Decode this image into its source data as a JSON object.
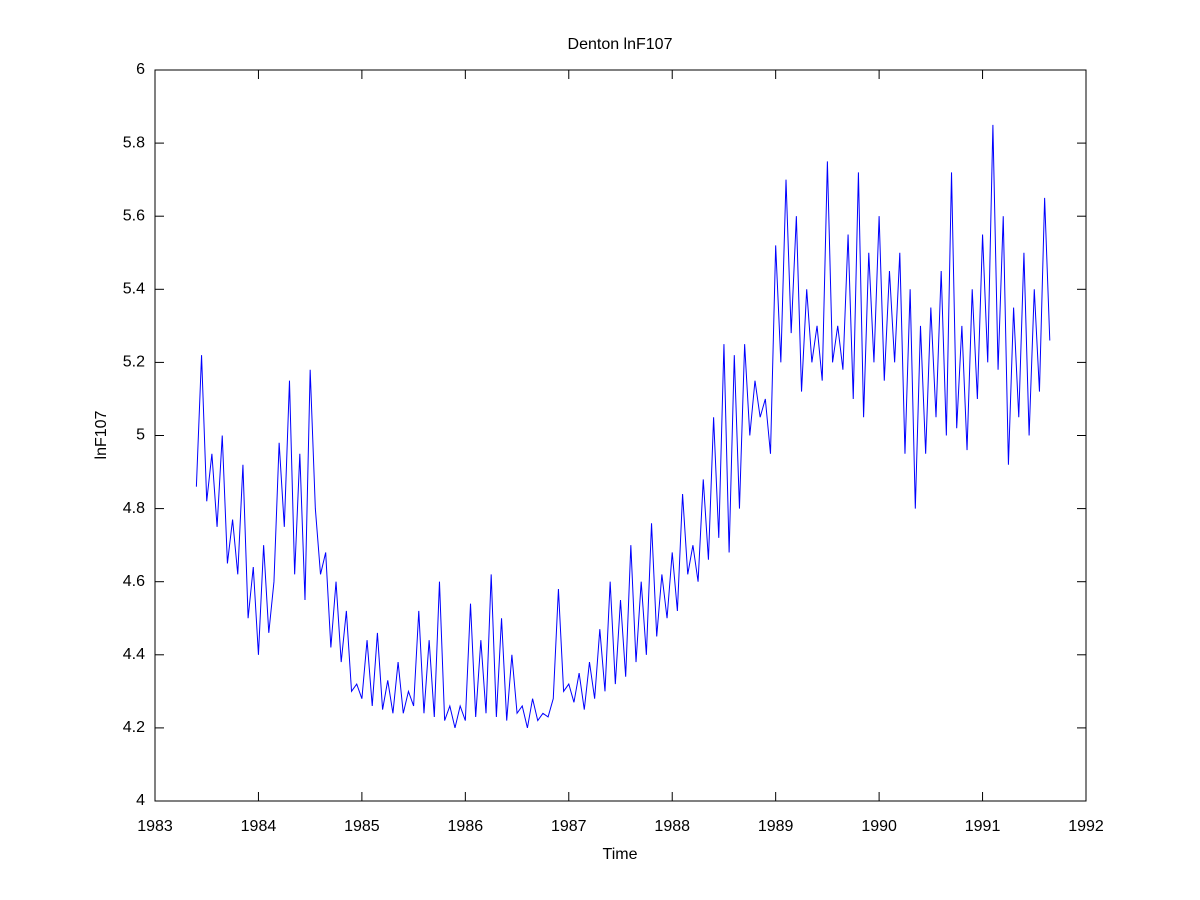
{
  "chart_data": {
    "type": "line",
    "title": "Denton lnF107",
    "x_label": "Time",
    "y_label": "lnF107",
    "xlim": [
      1983,
      1992
    ],
    "xticks": [
      1983,
      1984,
      1985,
      1986,
      1987,
      1988,
      1989,
      1990,
      1991,
      1992
    ],
    "ylim": [
      4,
      6
    ],
    "yticks": [
      4,
      4.2,
      4.4,
      4.6,
      4.8,
      5,
      5.2,
      5.4,
      5.6,
      5.8,
      6
    ],
    "grid": false,
    "x": [
      1983.4,
      1983.45,
      1983.5,
      1983.55,
      1983.6,
      1983.65,
      1983.7,
      1983.75,
      1983.8,
      1983.85,
      1983.9,
      1983.95,
      1984.0,
      1984.05,
      1984.1,
      1984.15,
      1984.2,
      1984.25,
      1984.3,
      1984.35,
      1984.4,
      1984.45,
      1984.5,
      1984.55,
      1984.6,
      1984.65,
      1984.7,
      1984.75,
      1984.8,
      1984.85,
      1984.9,
      1984.95,
      1985.0,
      1985.05,
      1985.1,
      1985.15,
      1985.2,
      1985.25,
      1985.3,
      1985.35,
      1985.4,
      1985.45,
      1985.5,
      1985.55,
      1985.6,
      1985.65,
      1985.7,
      1985.75,
      1985.8,
      1985.85,
      1985.9,
      1985.95,
      1986.0,
      1986.05,
      1986.1,
      1986.15,
      1986.2,
      1986.25,
      1986.3,
      1986.35,
      1986.4,
      1986.45,
      1986.5,
      1986.55,
      1986.6,
      1986.65,
      1986.7,
      1986.75,
      1986.8,
      1986.85,
      1986.9,
      1986.95,
      1987.0,
      1987.05,
      1987.1,
      1987.15,
      1987.2,
      1987.25,
      1987.3,
      1987.35,
      1987.4,
      1987.45,
      1987.5,
      1987.55,
      1987.6,
      1987.65,
      1987.7,
      1987.75,
      1987.8,
      1987.85,
      1987.9,
      1987.95,
      1988.0,
      1988.05,
      1988.1,
      1988.15,
      1988.2,
      1988.25,
      1988.3,
      1988.35,
      1988.4,
      1988.45,
      1988.5,
      1988.55,
      1988.6,
      1988.65,
      1988.7,
      1988.75,
      1988.8,
      1988.85,
      1988.9,
      1988.95,
      1989.0,
      1989.05,
      1989.1,
      1989.15,
      1989.2,
      1989.25,
      1989.3,
      1989.35,
      1989.4,
      1989.45,
      1989.5,
      1989.55,
      1989.6,
      1989.65,
      1989.7,
      1989.75,
      1989.8,
      1989.85,
      1989.9,
      1989.95,
      1990.0,
      1990.05,
      1990.1,
      1990.15,
      1990.2,
      1990.25,
      1990.3,
      1990.35,
      1990.4,
      1990.45,
      1990.5,
      1990.55,
      1990.6,
      1990.65,
      1990.7,
      1990.75,
      1990.8,
      1990.85,
      1990.9,
      1990.95,
      1991.0,
      1991.05,
      1991.1,
      1991.15,
      1991.2,
      1991.25,
      1991.3,
      1991.35,
      1991.4,
      1991.45,
      1991.5,
      1991.55,
      1991.6,
      1991.65
    ],
    "series": [
      {
        "color": "#0000ff",
        "values": [
          4.86,
          5.22,
          4.82,
          4.95,
          4.75,
          5.0,
          4.65,
          4.77,
          4.62,
          4.92,
          4.5,
          4.64,
          4.4,
          4.7,
          4.46,
          4.6,
          4.98,
          4.75,
          5.15,
          4.62,
          4.95,
          4.55,
          5.18,
          4.8,
          4.62,
          4.68,
          4.42,
          4.6,
          4.38,
          4.52,
          4.3,
          4.32,
          4.28,
          4.44,
          4.26,
          4.46,
          4.25,
          4.33,
          4.24,
          4.38,
          4.24,
          4.3,
          4.26,
          4.52,
          4.24,
          4.44,
          4.23,
          4.6,
          4.22,
          4.26,
          4.2,
          4.26,
          4.22,
          4.54,
          4.23,
          4.44,
          4.24,
          4.62,
          4.23,
          4.5,
          4.22,
          4.4,
          4.24,
          4.26,
          4.2,
          4.28,
          4.22,
          4.24,
          4.23,
          4.28,
          4.58,
          4.3,
          4.32,
          4.27,
          4.35,
          4.25,
          4.38,
          4.28,
          4.47,
          4.3,
          4.6,
          4.32,
          4.55,
          4.34,
          4.7,
          4.38,
          4.6,
          4.4,
          4.76,
          4.45,
          4.62,
          4.5,
          4.68,
          4.52,
          4.84,
          4.62,
          4.7,
          4.6,
          4.88,
          4.66,
          5.05,
          4.72,
          5.25,
          4.68,
          5.22,
          4.8,
          5.25,
          5.0,
          5.15,
          5.05,
          5.1,
          4.95,
          5.52,
          5.2,
          5.7,
          5.28,
          5.6,
          5.12,
          5.4,
          5.2,
          5.3,
          5.15,
          5.75,
          5.2,
          5.3,
          5.18,
          5.55,
          5.1,
          5.72,
          5.05,
          5.5,
          5.2,
          5.6,
          5.15,
          5.45,
          5.2,
          5.5,
          4.95,
          5.4,
          4.8,
          5.3,
          4.95,
          5.35,
          5.05,
          5.45,
          5.0,
          5.72,
          5.02,
          5.3,
          4.96,
          5.4,
          5.1,
          5.55,
          5.2,
          5.85,
          5.18,
          5.6,
          4.92,
          5.35,
          5.05,
          5.5,
          5.0,
          5.4,
          5.12,
          5.65,
          5.26
        ]
      }
    ]
  }
}
